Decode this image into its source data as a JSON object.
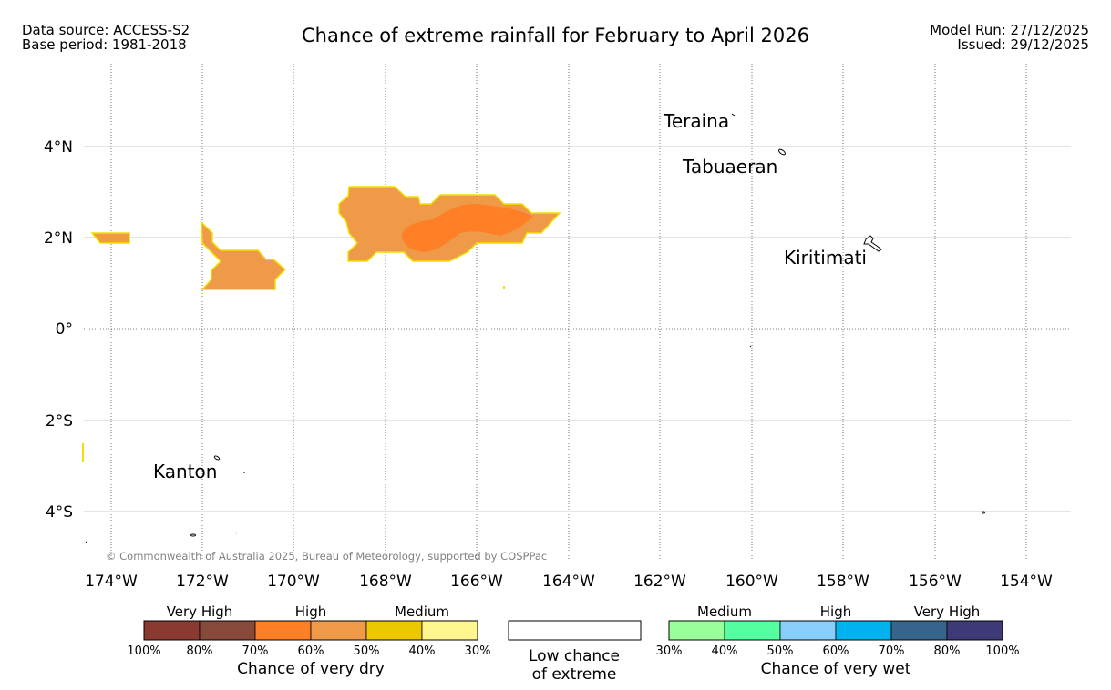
{
  "header": {
    "data_source": "Data source: ACCESS-S2",
    "base_period": "Base period: 1981-2018",
    "title": "Chance of extreme rainfall for February to April 2026",
    "model_run": "Model Run: 27/12/2025",
    "issued": "Issued: 29/12/2025"
  },
  "map": {
    "lon_ticks": [
      "174°W",
      "172°W",
      "170°W",
      "168°W",
      "166°W",
      "164°W",
      "162°W",
      "160°W",
      "158°W",
      "156°W",
      "154°W"
    ],
    "lat_ticks": [
      "4°N",
      "2°N",
      "0°",
      "2°S",
      "4°S"
    ],
    "places": [
      {
        "name": "Teraina"
      },
      {
        "name": "Tabuaeran"
      },
      {
        "name": "Kiritimati"
      },
      {
        "name": "Kanton"
      }
    ],
    "copyright": "© Commonwealth of Australia 2025, Bureau of Meteorology, supported by COSPPac",
    "land_color": "#ffffff",
    "coast_color": "#000000"
  },
  "legend": {
    "dry": {
      "groups": [
        "Very High",
        "High",
        "Medium"
      ],
      "colors": [
        "#8b3a32",
        "#874a3a",
        "#ff7f27",
        "#ee9a48",
        "#edc700",
        "#fff68f"
      ],
      "ticks": [
        "100%",
        "80%",
        "70%",
        "60%",
        "50%",
        "40%",
        "30%"
      ],
      "label": "Chance of very dry"
    },
    "low": {
      "line1": "Low chance",
      "line2": "of extreme"
    },
    "wet": {
      "groups": [
        "Medium",
        "High",
        "Very High"
      ],
      "colors": [
        "#9aff9a",
        "#54ff9f",
        "#87cefa",
        "#00b2ee",
        "#36648b",
        "#3e3a78"
      ],
      "ticks": [
        "30%",
        "40%",
        "50%",
        "60%",
        "70%",
        "80%",
        "100%"
      ],
      "label": "Chance of very wet"
    }
  }
}
